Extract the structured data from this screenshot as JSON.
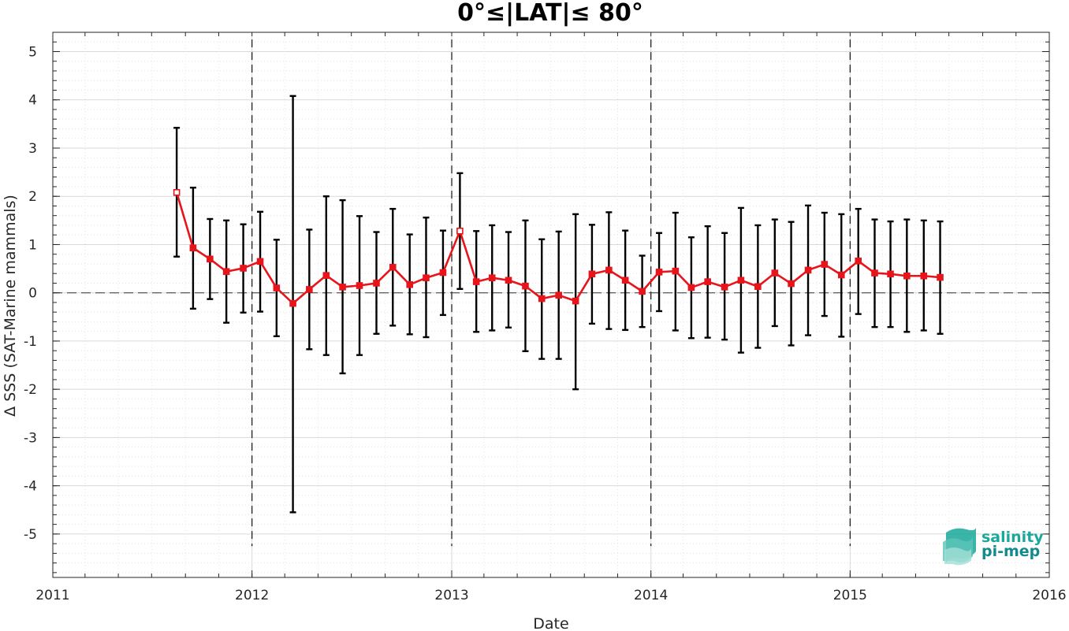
{
  "chart_data": {
    "type": "line",
    "title": "0°≤|LAT|≤ 80°",
    "xlabel": "Date",
    "ylabel": "Δ SSS (SAT-Marine mammals)",
    "xlim": [
      "2011-01-01",
      "2016-01-01"
    ],
    "ylim": [
      -5.9,
      5.4
    ],
    "xticks": [
      "2011",
      "2012",
      "2013",
      "2014",
      "2015",
      "2016"
    ],
    "yticks": [
      5,
      4,
      3,
      2,
      1,
      0,
      -1,
      -2,
      -3,
      -4,
      -5
    ],
    "ytick_labels": [
      "5",
      "4",
      "3",
      "2",
      "1",
      "0",
      "-1",
      "-2",
      "-3",
      "-4",
      "-5"
    ],
    "grid": true,
    "minor_grid": true,
    "reference_line": {
      "y": 0,
      "style": "dashed",
      "color": "#000000"
    },
    "year_separators": [
      "2012-01-01",
      "2013-01-01",
      "2014-01-01",
      "2015-01-01"
    ],
    "series": [
      {
        "color": "#e8141b",
        "marker": "square",
        "errorbar_color": "#000000",
        "x": [
          "2011-08-16",
          "2011-09-15",
          "2011-10-16",
          "2011-11-15",
          "2011-12-16",
          "2012-01-16",
          "2012-02-15",
          "2012-03-16",
          "2012-04-15",
          "2012-05-16",
          "2012-06-15",
          "2012-07-16",
          "2012-08-16",
          "2012-09-15",
          "2012-10-16",
          "2012-11-15",
          "2012-12-16",
          "2013-01-16",
          "2013-02-15",
          "2013-03-16",
          "2013-04-15",
          "2013-05-16",
          "2013-06-15",
          "2013-07-16",
          "2013-08-16",
          "2013-09-15",
          "2013-10-16",
          "2013-11-15",
          "2013-12-16",
          "2014-01-16",
          "2014-02-15",
          "2014-03-16",
          "2014-04-15",
          "2014-05-16",
          "2014-06-15",
          "2014-07-16",
          "2014-08-16",
          "2014-09-15",
          "2014-10-16",
          "2014-11-15",
          "2014-12-16",
          "2015-01-16",
          "2015-02-15",
          "2015-03-16",
          "2015-04-15",
          "2015-05-16",
          "2015-06-15"
        ],
        "y": [
          2.08,
          0.93,
          0.7,
          0.44,
          0.51,
          0.65,
          0.1,
          -0.22,
          0.07,
          0.36,
          0.12,
          0.15,
          0.2,
          0.53,
          0.17,
          0.31,
          0.42,
          1.28,
          0.23,
          0.31,
          0.26,
          0.14,
          -0.12,
          -0.05,
          -0.17,
          0.39,
          0.47,
          0.26,
          0.03,
          0.43,
          0.45,
          0.11,
          0.23,
          0.12,
          0.26,
          0.13,
          0.41,
          0.19,
          0.47,
          0.59,
          0.37,
          0.66,
          0.41,
          0.39,
          0.35,
          0.35,
          0.32
        ],
        "err_low": [
          0.75,
          -0.33,
          -0.13,
          -0.62,
          -0.41,
          -0.39,
          -0.9,
          -4.55,
          -1.17,
          -1.29,
          -1.67,
          -1.29,
          -0.85,
          -0.68,
          -0.86,
          -0.92,
          -0.46,
          0.08,
          -0.81,
          -0.78,
          -0.72,
          -1.21,
          -1.37,
          -1.37,
          -2.0,
          -0.64,
          -0.75,
          -0.77,
          -0.71,
          -0.38,
          -0.78,
          -0.94,
          -0.93,
          -0.97,
          -1.24,
          -1.14,
          -0.69,
          -1.09,
          -0.88,
          -0.48,
          -0.91,
          -0.44,
          -0.71,
          -0.71,
          -0.81,
          -0.78,
          -0.85
        ],
        "err_high": [
          3.42,
          2.18,
          1.53,
          1.5,
          1.42,
          1.68,
          1.1,
          4.08,
          1.31,
          2.0,
          1.92,
          1.59,
          1.26,
          1.74,
          1.21,
          1.56,
          1.29,
          2.48,
          1.28,
          1.4,
          1.26,
          1.5,
          1.11,
          1.27,
          1.63,
          1.41,
          1.67,
          1.29,
          0.77,
          1.24,
          1.66,
          1.15,
          1.38,
          1.24,
          1.76,
          1.4,
          1.52,
          1.47,
          1.81,
          1.66,
          1.63,
          1.74,
          1.52,
          1.48,
          1.52,
          1.5,
          1.48
        ]
      }
    ]
  },
  "logo": {
    "line1": "salinity",
    "line2": "pi-mep",
    "color1": "#1aa89a",
    "color2": "#138a8c"
  }
}
